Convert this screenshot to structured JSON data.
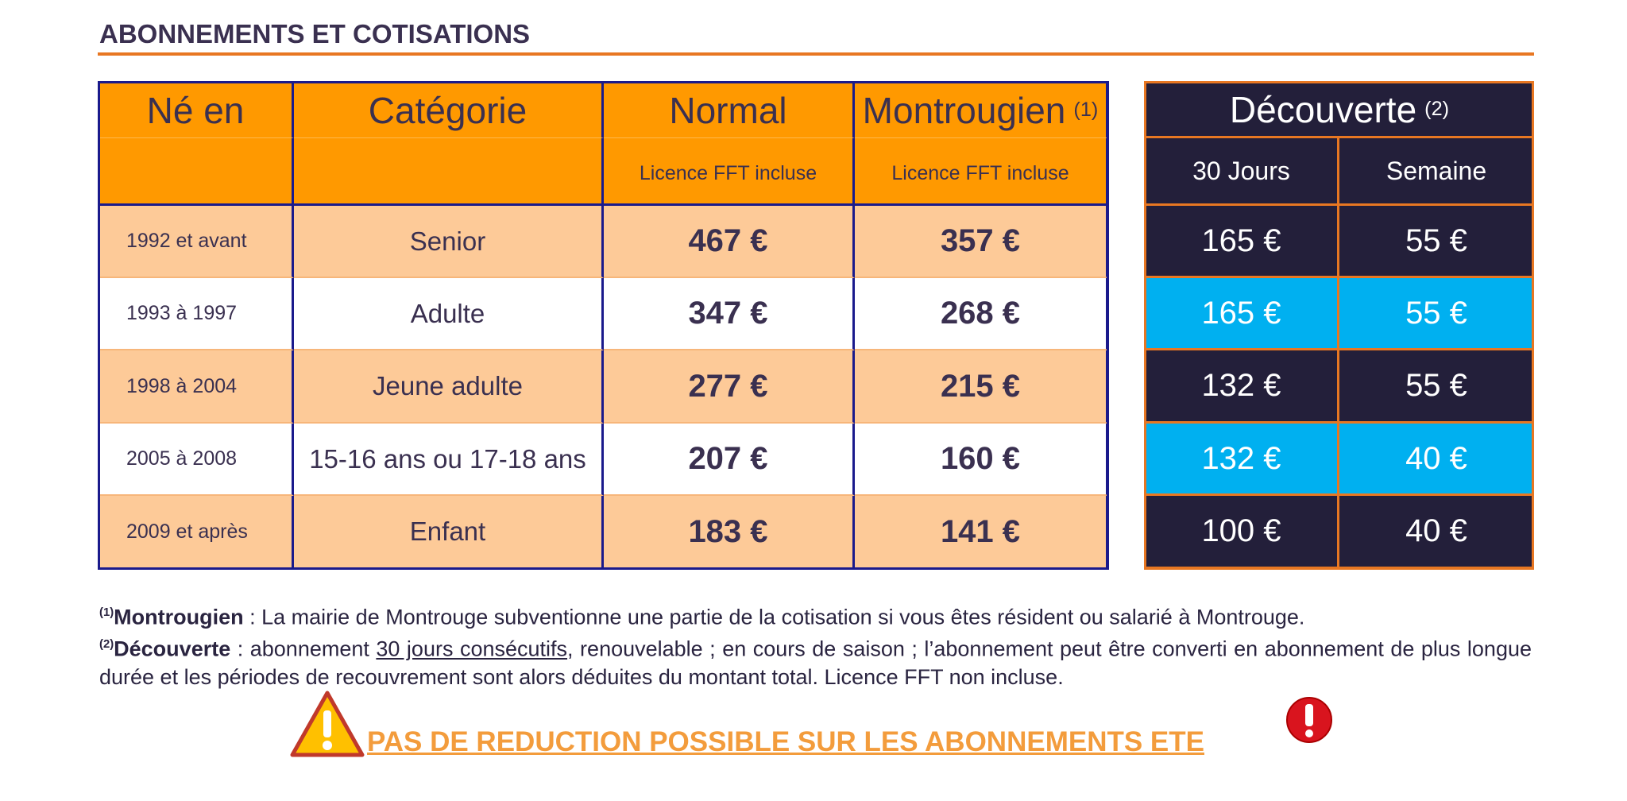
{
  "header": {
    "title": "ABONNEMENTS ET COTISATIONS"
  },
  "table": {
    "columns": [
      "Né en",
      "Catégorie",
      "Normal",
      "Montrougien"
    ],
    "montrougien_note": "(1)",
    "subheaders": [
      "Licence FFT incluse",
      "Licence FFT incluse"
    ],
    "rows": [
      [
        "1992 et avant",
        "Senior",
        "467 €",
        "357 €"
      ],
      [
        "1993 à 1997",
        "Adulte",
        "347 €",
        "268 €"
      ],
      [
        "1998 à 2004",
        "Jeune adulte",
        "277 €",
        "215 €"
      ],
      [
        "2005 à 2008",
        "15-16 ans ou 17-18 ans",
        "207 €",
        "160 €"
      ],
      [
        "2009 et après",
        "Enfant",
        "183 €",
        "141 €"
      ]
    ]
  },
  "discovery": {
    "title": "Découverte",
    "note": "(2)",
    "columns": [
      "30 Jours",
      "Semaine"
    ],
    "rows": [
      [
        "165 €",
        "55 €"
      ],
      [
        "165 €",
        "55 €"
      ],
      [
        "132 €",
        "55 €"
      ],
      [
        "132 €",
        "40 €"
      ],
      [
        "100 €",
        "40 €"
      ]
    ]
  },
  "footnotes": [
    {
      "marker": "(1)",
      "term": "Montrougien",
      "text": " :  La mairie de Montrouge subventionne une partie de la cotisation si vous êtes résident ou salarié à Montrouge."
    },
    {
      "marker": "(2)",
      "term": "Découverte",
      "before": " :  abonnement ",
      "underlined": "30 jours consécutifs",
      "after": ", renouvelable ; en cours de saison ; l’abonnement peut être converti en abonnement de plus longue durée et les périodes de recouvrement sont alors déduites du montant total. Licence FFT non incluse."
    }
  ],
  "warning": "PAS DE REDUCTION POSSIBLE SUR LES ABONNEMENTS ETE"
}
